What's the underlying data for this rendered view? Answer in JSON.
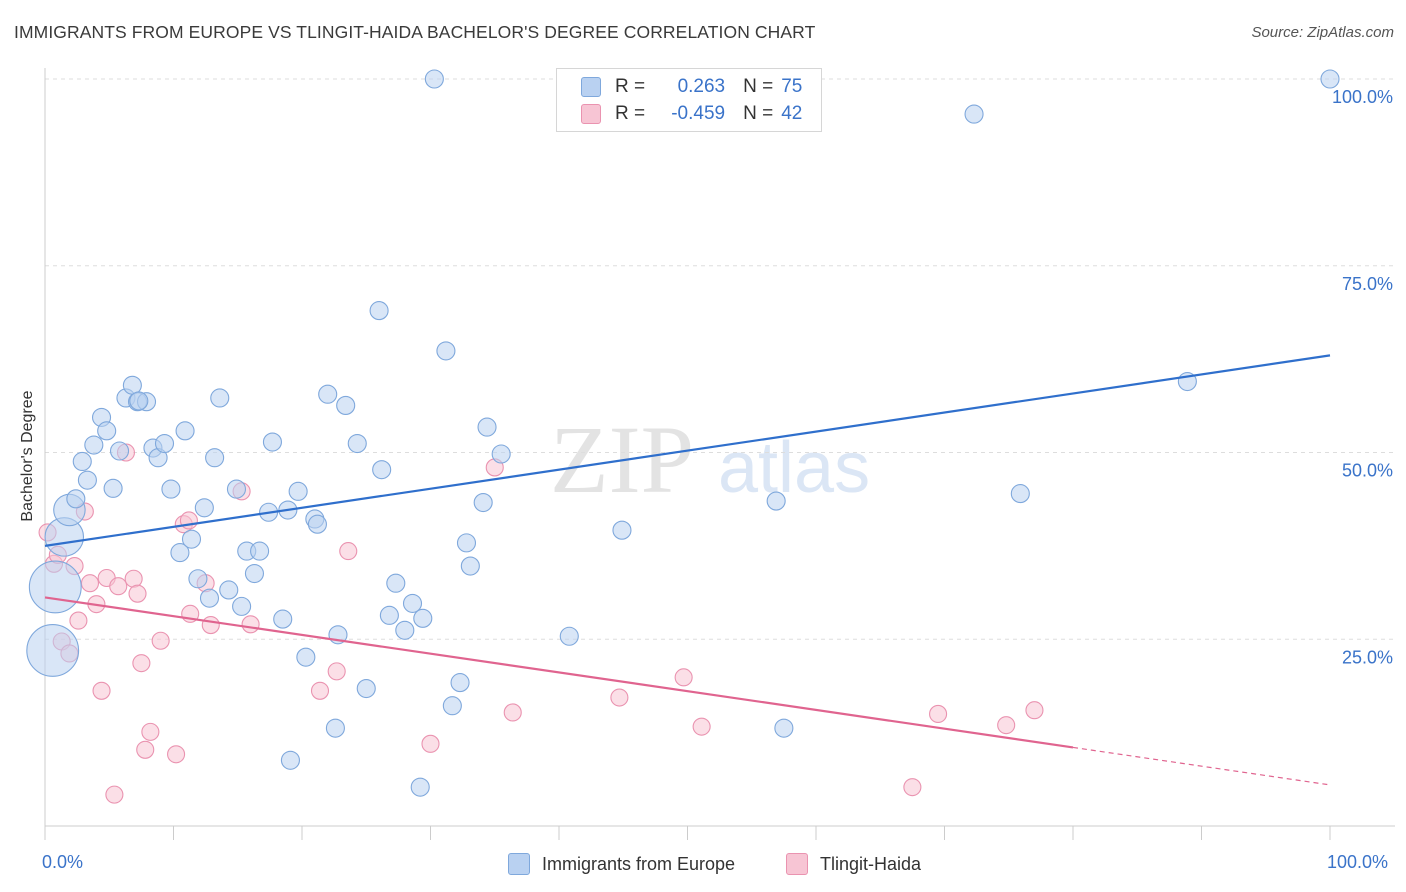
{
  "header": {
    "title": "IMMIGRANTS FROM EUROPE VS TLINGIT-HAIDA BACHELOR'S DEGREE CORRELATION CHART",
    "source": "Source: ZipAtlas.com"
  },
  "legend": {
    "rows": [
      {
        "r_label": "R =",
        "r_value": "0.263",
        "n_label": "N =",
        "n_value": "75"
      },
      {
        "r_label": "R =",
        "r_value": "-0.459",
        "n_label": "N =",
        "n_value": "42"
      }
    ],
    "items": [
      "Immigrants from Europe",
      "Tlingit-Haida"
    ]
  },
  "colors": {
    "blue_fill": "#b9d1f1",
    "blue_stroke": "#7fa8dc",
    "blue_line": "#2f6fcc",
    "pink_fill": "#f7c5d4",
    "pink_stroke": "#ea93b0",
    "pink_line": "#e0648f",
    "tick_text": "#3a73c9",
    "grid": "#dddddd"
  },
  "watermark": {
    "zip": "ZIP",
    "atlas": "atlas"
  },
  "chart_data": {
    "type": "scatter",
    "title": "IMMIGRANTS FROM EUROPE VS TLINGIT-HAIDA BACHELOR'S DEGREE CORRELATION CHART",
    "xlabel": "",
    "ylabel": "Bachelor's Degree",
    "xlim": [
      0,
      100
    ],
    "ylim": [
      0,
      103
    ],
    "x_tick_labels": [
      "0.0%",
      "100.0%"
    ],
    "y_ticks": [
      25,
      50,
      75,
      100
    ],
    "y_tick_labels": [
      "25.0%",
      "50.0%",
      "75.0%",
      "100.0%"
    ],
    "grid": true,
    "series": [
      {
        "name": "Immigrants from Europe",
        "r": 0.263,
        "n": 75,
        "trend": {
          "x0": 0,
          "y0": 37.5,
          "x1": 100,
          "y1": 63
        },
        "points": [
          {
            "x": 0.6,
            "y": 23.5,
            "s": 3
          },
          {
            "x": 0.8,
            "y": 32,
            "s": 3
          },
          {
            "x": 1.5,
            "y": 38.7,
            "s": 2
          },
          {
            "x": 1.9,
            "y": 42.3,
            "s": 1.5
          },
          {
            "x": 2.4,
            "y": 43.8,
            "s": 1
          },
          {
            "x": 2.9,
            "y": 48.8,
            "s": 1
          },
          {
            "x": 3.3,
            "y": 46.3,
            "s": 1
          },
          {
            "x": 3.8,
            "y": 51,
            "s": 1
          },
          {
            "x": 4.4,
            "y": 54.7,
            "s": 1
          },
          {
            "x": 4.8,
            "y": 52.9,
            "s": 1
          },
          {
            "x": 5.3,
            "y": 45.2,
            "s": 1
          },
          {
            "x": 5.8,
            "y": 50.2,
            "s": 1
          },
          {
            "x": 6.3,
            "y": 57.3,
            "s": 1
          },
          {
            "x": 6.8,
            "y": 59,
            "s": 1
          },
          {
            "x": 7.2,
            "y": 56.8,
            "s": 1
          },
          {
            "x": 7.9,
            "y": 56.8,
            "s": 1
          },
          {
            "x": 8.4,
            "y": 50.6,
            "s": 1
          },
          {
            "x": 8.8,
            "y": 49.3,
            "s": 1
          },
          {
            "x": 9.3,
            "y": 51.2,
            "s": 1
          },
          {
            "x": 9.8,
            "y": 45.1,
            "s": 1
          },
          {
            "x": 10.5,
            "y": 36.6,
            "s": 1
          },
          {
            "x": 10.9,
            "y": 52.9,
            "s": 1
          },
          {
            "x": 11.4,
            "y": 38.4,
            "s": 1
          },
          {
            "x": 11.9,
            "y": 33.1,
            "s": 1
          },
          {
            "x": 12.4,
            "y": 42.6,
            "s": 1
          },
          {
            "x": 12.8,
            "y": 30.5,
            "s": 1
          },
          {
            "x": 13.2,
            "y": 49.3,
            "s": 1
          },
          {
            "x": 13.6,
            "y": 57.3,
            "s": 1
          },
          {
            "x": 14.3,
            "y": 31.6,
            "s": 1
          },
          {
            "x": 14.9,
            "y": 45.1,
            "s": 1
          },
          {
            "x": 15.3,
            "y": 29.4,
            "s": 1
          },
          {
            "x": 15.7,
            "y": 36.8,
            "s": 1
          },
          {
            "x": 16.3,
            "y": 33.8,
            "s": 1
          },
          {
            "x": 16.7,
            "y": 36.8,
            "s": 1
          },
          {
            "x": 17.4,
            "y": 42,
            "s": 1
          },
          {
            "x": 17.7,
            "y": 51.4,
            "s": 1
          },
          {
            "x": 18.5,
            "y": 27.7,
            "s": 1
          },
          {
            "x": 18.9,
            "y": 42.3,
            "s": 1
          },
          {
            "x": 19.1,
            "y": 8.8,
            "s": 1
          },
          {
            "x": 19.7,
            "y": 44.8,
            "s": 1
          },
          {
            "x": 20.3,
            "y": 22.6,
            "s": 1
          },
          {
            "x": 21,
            "y": 41.1,
            "s": 1
          },
          {
            "x": 21.2,
            "y": 40.4,
            "s": 1
          },
          {
            "x": 22,
            "y": 57.8,
            "s": 1
          },
          {
            "x": 22.6,
            "y": 13.1,
            "s": 1
          },
          {
            "x": 22.8,
            "y": 25.6,
            "s": 1
          },
          {
            "x": 23.4,
            "y": 56.3,
            "s": 1
          },
          {
            "x": 24.3,
            "y": 51.2,
            "s": 1
          },
          {
            "x": 25,
            "y": 18.4,
            "s": 1
          },
          {
            "x": 26,
            "y": 69,
            "s": 1
          },
          {
            "x": 26.2,
            "y": 47.7,
            "s": 1
          },
          {
            "x": 26.8,
            "y": 28.2,
            "s": 1
          },
          {
            "x": 27.3,
            "y": 32.5,
            "s": 1
          },
          {
            "x": 28,
            "y": 26.2,
            "s": 1
          },
          {
            "x": 28.6,
            "y": 29.8,
            "s": 1
          },
          {
            "x": 29.2,
            "y": 5.2,
            "s": 1
          },
          {
            "x": 29.4,
            "y": 27.8,
            "s": 1
          },
          {
            "x": 30.3,
            "y": 100,
            "s": 1
          },
          {
            "x": 31.2,
            "y": 63.6,
            "s": 1
          },
          {
            "x": 31.7,
            "y": 16.1,
            "s": 1
          },
          {
            "x": 32.3,
            "y": 19.2,
            "s": 1
          },
          {
            "x": 32.8,
            "y": 37.9,
            "s": 1
          },
          {
            "x": 33.1,
            "y": 34.8,
            "s": 1
          },
          {
            "x": 34.1,
            "y": 43.3,
            "s": 1
          },
          {
            "x": 34.4,
            "y": 53.4,
            "s": 1
          },
          {
            "x": 35.5,
            "y": 49.8,
            "s": 1
          },
          {
            "x": 40.8,
            "y": 25.4,
            "s": 1
          },
          {
            "x": 44.9,
            "y": 39.6,
            "s": 1
          },
          {
            "x": 56.9,
            "y": 43.5,
            "s": 1
          },
          {
            "x": 57.5,
            "y": 13.1,
            "s": 1
          },
          {
            "x": 72.3,
            "y": 95.3,
            "s": 1
          },
          {
            "x": 75.9,
            "y": 44.5,
            "s": 1
          },
          {
            "x": 88.9,
            "y": 59.5,
            "s": 1
          },
          {
            "x": 100,
            "y": 100,
            "s": 1
          },
          {
            "x": 7.3,
            "y": 56.9,
            "s": 1
          }
        ]
      },
      {
        "name": "Tlingit-Haida",
        "r": -0.459,
        "n": 42,
        "trend": {
          "x0": 0,
          "y0": 30.6,
          "x1": 100,
          "y1": 5.5,
          "solid_to_x": 80
        },
        "points": [
          {
            "x": 0.2,
            "y": 39.3
          },
          {
            "x": 0.7,
            "y": 35.1
          },
          {
            "x": 1,
            "y": 36.3
          },
          {
            "x": 1.3,
            "y": 24.7
          },
          {
            "x": 1.9,
            "y": 23.1
          },
          {
            "x": 2.3,
            "y": 34.8
          },
          {
            "x": 2.6,
            "y": 27.5
          },
          {
            "x": 3.1,
            "y": 42.1
          },
          {
            "x": 3.5,
            "y": 32.5
          },
          {
            "x": 4,
            "y": 29.7
          },
          {
            "x": 4.4,
            "y": 18.1
          },
          {
            "x": 4.8,
            "y": 33.2
          },
          {
            "x": 5.4,
            "y": 4.2
          },
          {
            "x": 5.7,
            "y": 32.1
          },
          {
            "x": 6.3,
            "y": 50
          },
          {
            "x": 6.9,
            "y": 33.1
          },
          {
            "x": 7.2,
            "y": 31.1
          },
          {
            "x": 7.5,
            "y": 21.8
          },
          {
            "x": 7.8,
            "y": 10.2
          },
          {
            "x": 8.2,
            "y": 12.6
          },
          {
            "x": 9,
            "y": 24.8
          },
          {
            "x": 10.2,
            "y": 9.6
          },
          {
            "x": 10.8,
            "y": 40.4
          },
          {
            "x": 11.2,
            "y": 40.9
          },
          {
            "x": 11.3,
            "y": 28.4
          },
          {
            "x": 12.5,
            "y": 32.5
          },
          {
            "x": 12.9,
            "y": 26.9
          },
          {
            "x": 15.3,
            "y": 44.8
          },
          {
            "x": 16,
            "y": 27
          },
          {
            "x": 21.4,
            "y": 18.1
          },
          {
            "x": 22.7,
            "y": 20.7
          },
          {
            "x": 23.6,
            "y": 36.8
          },
          {
            "x": 30,
            "y": 11
          },
          {
            "x": 35,
            "y": 48
          },
          {
            "x": 36.4,
            "y": 15.2
          },
          {
            "x": 44.7,
            "y": 17.2
          },
          {
            "x": 49.7,
            "y": 19.9
          },
          {
            "x": 51.1,
            "y": 13.3
          },
          {
            "x": 67.5,
            "y": 5.2
          },
          {
            "x": 69.5,
            "y": 15
          },
          {
            "x": 74.8,
            "y": 13.5
          },
          {
            "x": 77,
            "y": 15.5
          }
        ]
      }
    ]
  }
}
